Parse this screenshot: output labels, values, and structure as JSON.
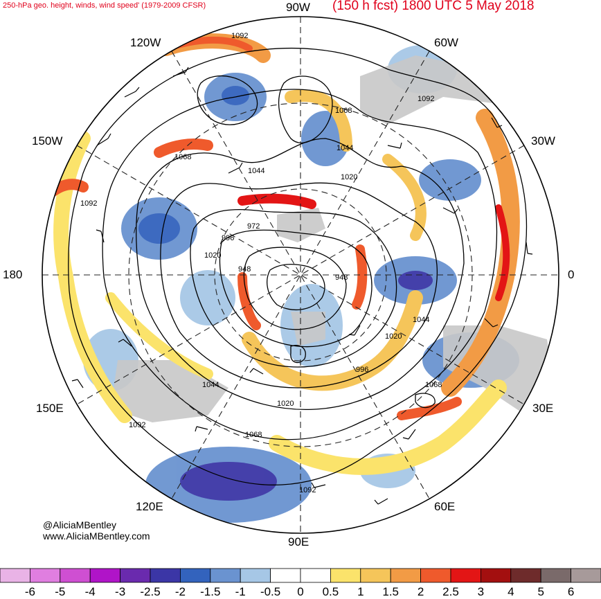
{
  "header": {
    "left": "250-hPa geo. height, winds, wind speed' (1979-2009 CFSR)",
    "right": "(150 h fcst) 1800 UTC 5 May 2018"
  },
  "meridians": {
    "top": "90W",
    "upper_left": "120W",
    "upper_right": "60W",
    "left_upper": "150W",
    "right_upper": "30W",
    "left": "180",
    "right": "0",
    "left_lower": "150E",
    "right_lower": "30E",
    "lower_left": "120E",
    "lower_right": "60E",
    "bottom": "90E"
  },
  "contours": {
    "c1092a": "1092",
    "c1092b": "1092",
    "c1092c": "1092",
    "c1092d": "1092",
    "c1092e": "1092",
    "c1068a": "1068",
    "c1068b": "1068",
    "c1068c": "1068",
    "c1068d": "1068",
    "c1044a": "1044",
    "c1044b": "1044",
    "c1044c": "1044",
    "c1044d": "1044",
    "c1020a": "1020",
    "c1020b": "1020",
    "c1020c": "1020",
    "c1020d": "1020",
    "c996a": "996",
    "c996b": "996",
    "c972": "972",
    "c948a": "948",
    "c948b": "948"
  },
  "credits": {
    "handle": "@AliciaMBentley",
    "site": "www.AliciaMBentley.com"
  },
  "legend": {
    "ticks": [
      "-6",
      "-5",
      "-4",
      "-3",
      "-2.5",
      "-2",
      "-1.5",
      "-1",
      "-0.5",
      "0",
      "0.5",
      "1",
      "1.5",
      "2",
      "2.5",
      "3",
      "4",
      "5",
      "6"
    ],
    "colors": [
      "#e9b3e6",
      "#e07ee0",
      "#cf4fd2",
      "#b014c8",
      "#6a2aae",
      "#3b36a6",
      "#3363bd",
      "#6a93d0",
      "#a6c7e6",
      "#ffffff",
      "#ffffff",
      "#fbe36b",
      "#f5c55a",
      "#f29b45",
      "#ef5a2c",
      "#e31515",
      "#a30f0f",
      "#6e2b2b",
      "#7a6a6a",
      "#a79a9a"
    ]
  }
}
